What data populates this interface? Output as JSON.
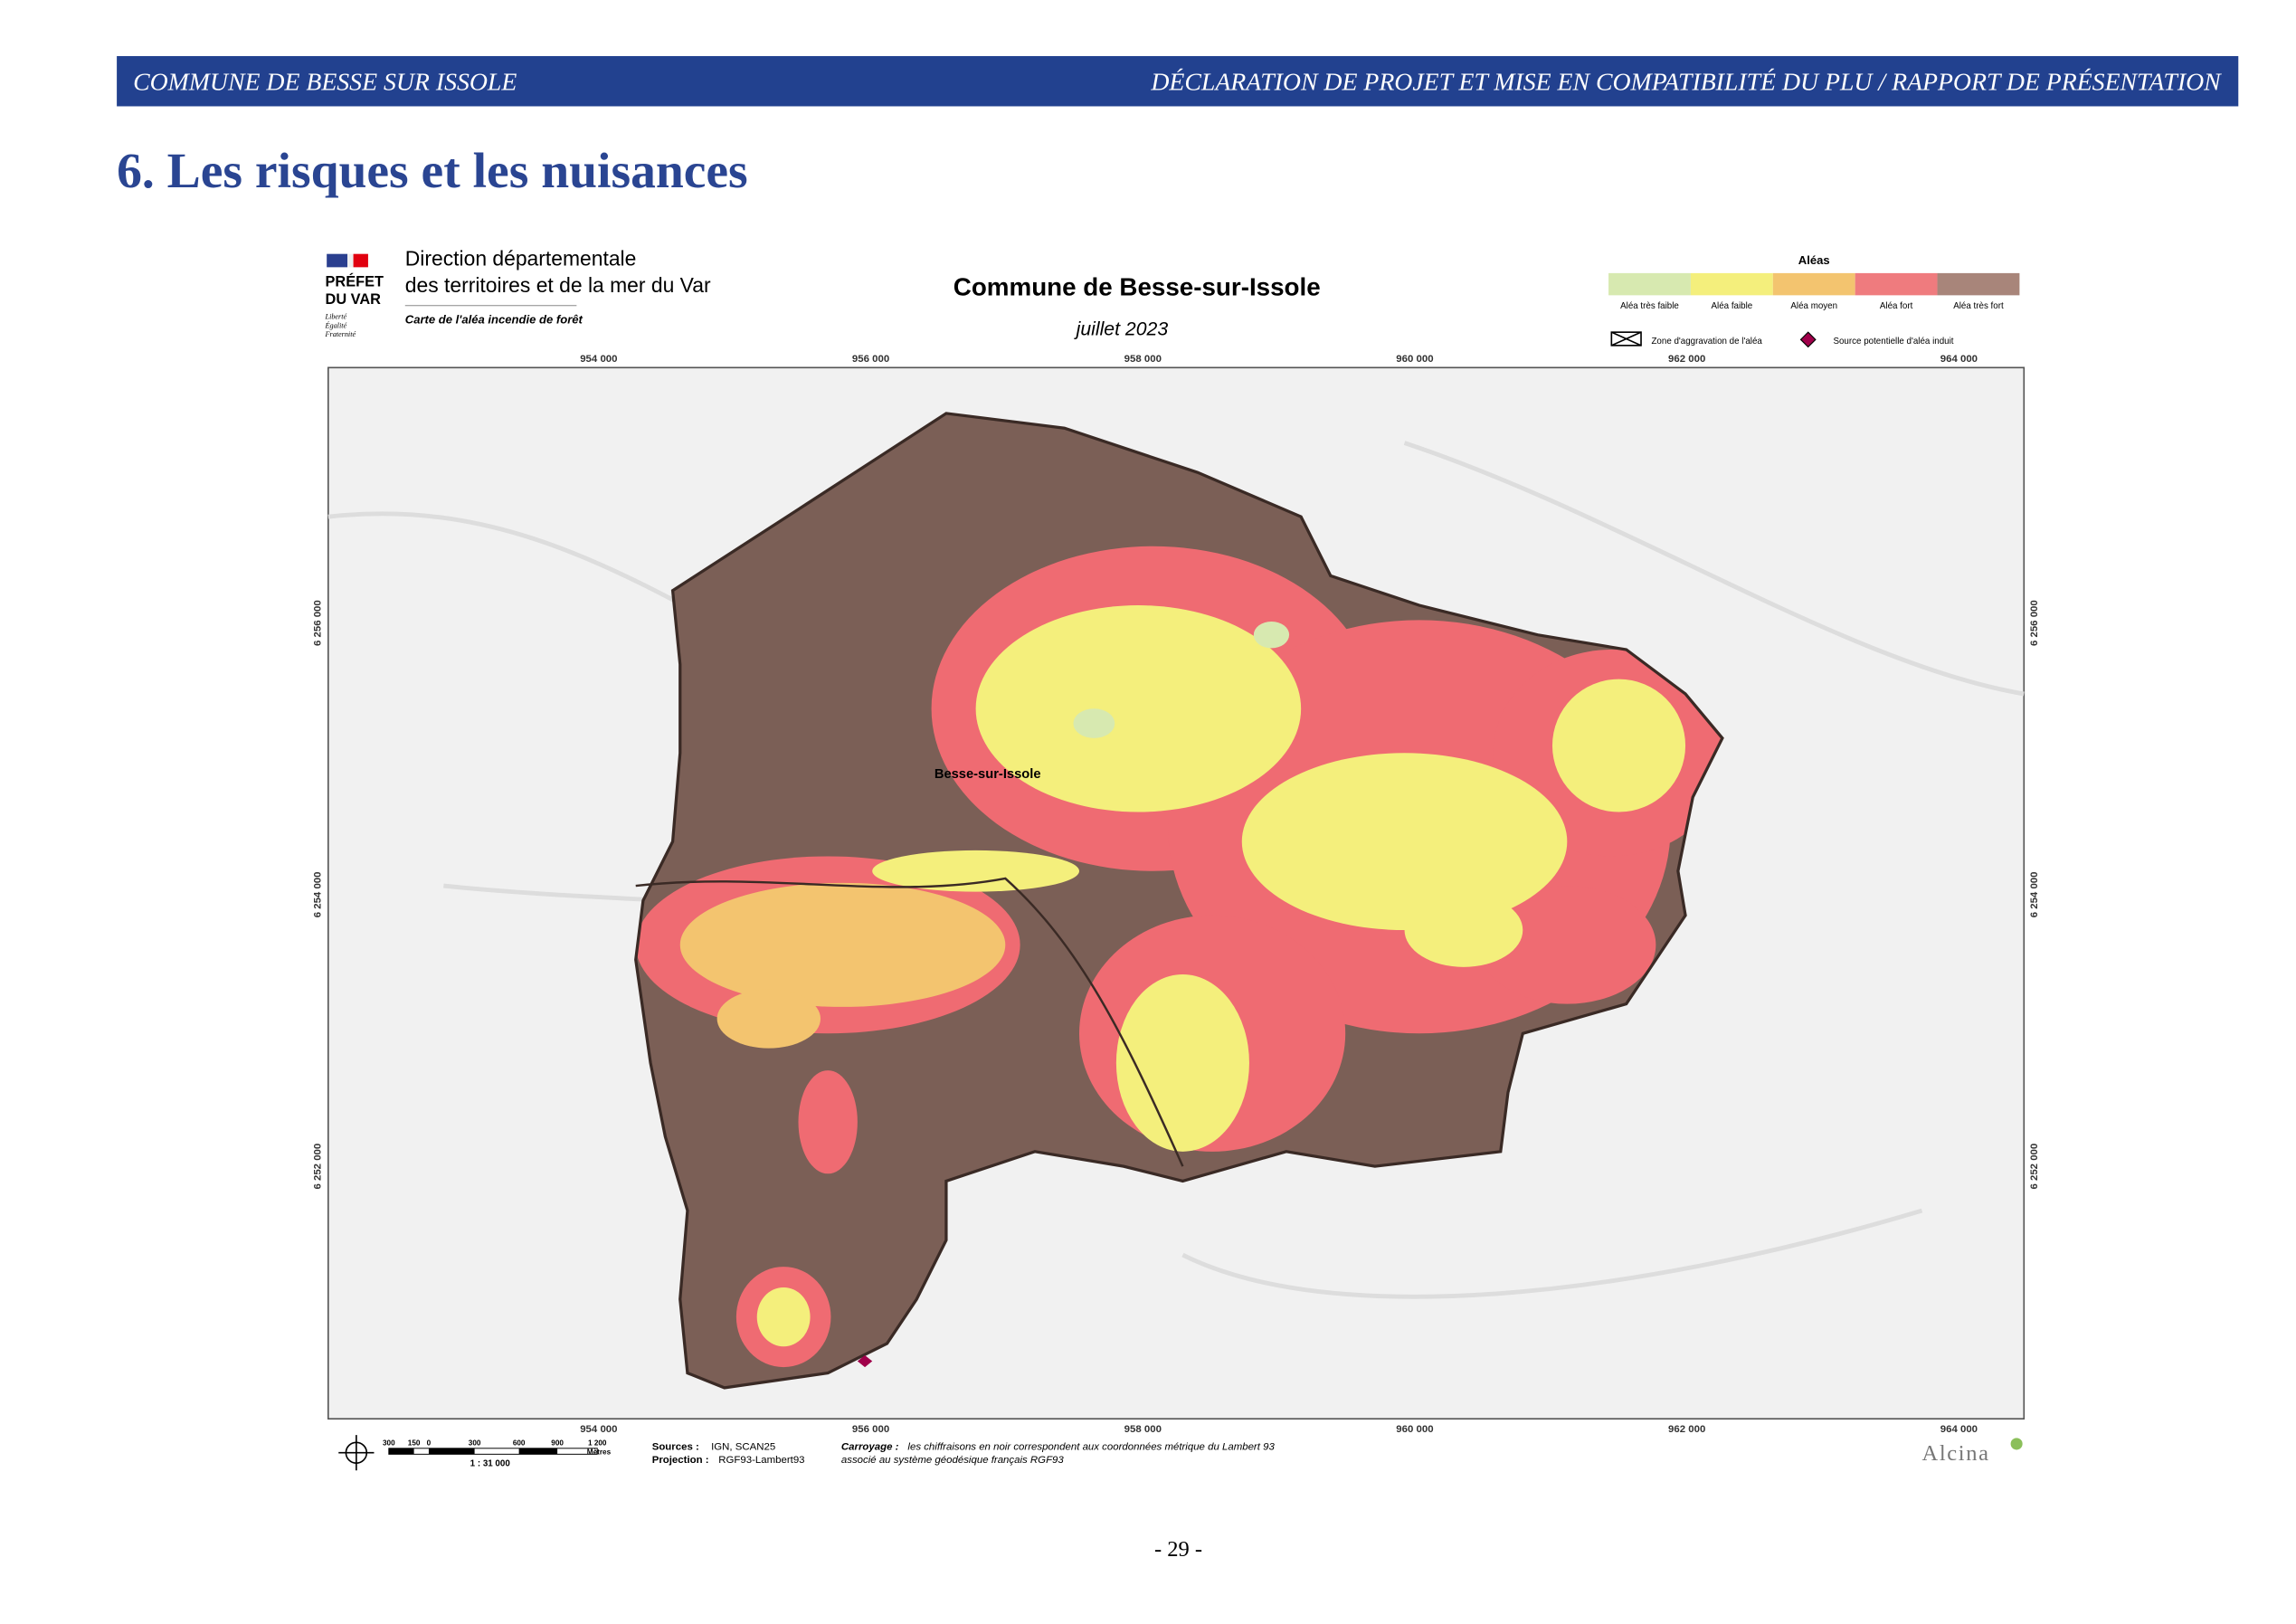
{
  "header": {
    "left": "COMMUNE DE BESSE SUR ISSOLE",
    "right": "DÉCLARATION DE PROJET ET MISE EN COMPATIBILITÉ DU PLU /  RAPPORT DE PRÉSENTATION"
  },
  "title": "6. Les risques et les nuisances",
  "map": {
    "prefet": [
      "PRÉFET",
      "DU VAR"
    ],
    "motto": [
      "Liberté",
      "Égalité",
      "Fraternité"
    ],
    "agency": [
      "Direction départementale",
      "des territoires et de la mer du Var"
    ],
    "subtitle": "Carte de l'aléa incendie de forêt",
    "title": "Commune de Besse-sur-Issole",
    "date": "juillet 2023",
    "legend": {
      "title": "Aléas",
      "items": [
        {
          "label": "Aléa très faible",
          "color": "#d7e9b0"
        },
        {
          "label": "Aléa faible",
          "color": "#f4ef7c"
        },
        {
          "label": "Aléa moyen",
          "color": "#f3c46f"
        },
        {
          "label": "Aléa fort",
          "color": "#ef7b7e"
        },
        {
          "label": "Aléa très fort",
          "color": "#a8857a"
        }
      ],
      "aggravation": "Zone d'aggravation de l'aléa",
      "source": "Source potentielle d'aléa induit"
    },
    "x_coords": [
      "954 000",
      "956 000",
      "958 000",
      "960 000",
      "962 000",
      "964 000"
    ],
    "y_coords": [
      "6 256 000",
      "6 254 000",
      "6 252 000"
    ],
    "place": "Besse-sur-Issole",
    "scale_ticks": [
      "300",
      "150",
      "0",
      "300",
      "600",
      "900",
      "1 200"
    ],
    "scale_unit": "Mètres",
    "scale_ratio": "1 : 31 000",
    "sources_label": "Sources :",
    "sources": "IGN, SCAN25",
    "projection_label": "Projection :",
    "projection": "RGF93-Lambert93",
    "carroyage_label": "Carroyage :",
    "carroyage": [
      "les chiffraisons en noir correspondent aux coordonnées métrique du Lambert 93",
      "associé au système géodésique français RGF93"
    ],
    "logo": "Alcina"
  },
  "page_number": "- 29 -"
}
